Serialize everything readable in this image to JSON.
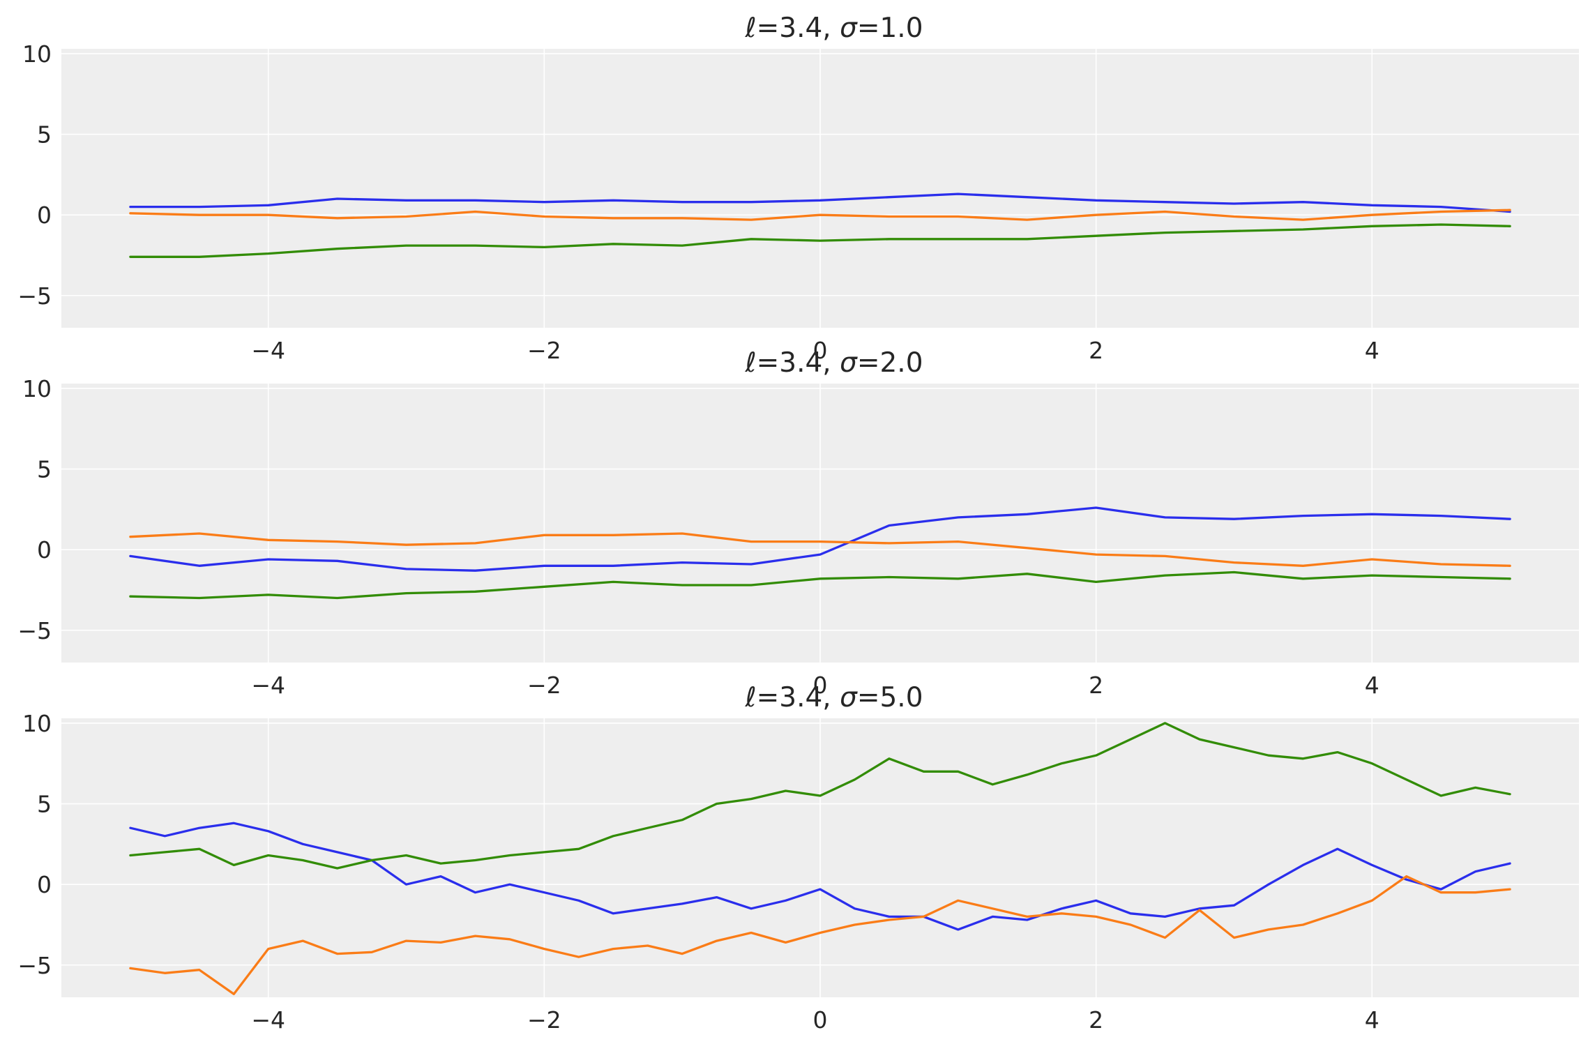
{
  "figure": {
    "background": "#ffffff",
    "panel_background": "#eeeeee",
    "grid_color": "#ffffff",
    "series_colors": [
      "#2a2eec",
      "#fa7c17",
      "#328c06"
    ]
  },
  "chart_data": [
    {
      "type": "line",
      "title": "ℓ=3.4, σ=1.0",
      "title_parts": {
        "l_symbol": "ℓ",
        "l_value": "=3.4, ",
        "sigma_symbol": "σ",
        "sigma_value": "=1.0"
      },
      "xlim": [
        -5.5,
        5.5
      ],
      "ylim": [
        -7,
        10.3
      ],
      "xticks": [
        -4,
        -2,
        0,
        2,
        4
      ],
      "xtick_labels": [
        "−4",
        "−2",
        "0",
        "2",
        "4"
      ],
      "yticks": [
        -5,
        0,
        5,
        10
      ],
      "ytick_labels": [
        "−5",
        "0",
        "5",
        "10"
      ],
      "grid": true,
      "x": [
        -5.0,
        -4.5,
        -4.0,
        -3.5,
        -3.0,
        -2.5,
        -2.0,
        -1.5,
        -1.0,
        -0.5,
        0.0,
        0.5,
        1.0,
        1.5,
        2.0,
        2.5,
        3.0,
        3.5,
        4.0,
        4.5,
        5.0
      ],
      "series": [
        {
          "color": "#2a2eec",
          "values": [
            0.5,
            0.5,
            0.6,
            1.0,
            0.9,
            0.9,
            0.8,
            0.9,
            0.8,
            0.8,
            0.9,
            1.1,
            1.3,
            1.1,
            0.9,
            0.8,
            0.7,
            0.8,
            0.6,
            0.5,
            0.2
          ]
        },
        {
          "color": "#fa7c17",
          "values": [
            0.1,
            0.0,
            0.0,
            -0.2,
            -0.1,
            0.2,
            -0.1,
            -0.2,
            -0.2,
            -0.3,
            0.0,
            -0.1,
            -0.1,
            -0.3,
            0.0,
            0.2,
            -0.1,
            -0.3,
            0.0,
            0.2,
            0.3
          ]
        },
        {
          "color": "#328c06",
          "values": [
            -2.6,
            -2.6,
            -2.4,
            -2.1,
            -1.9,
            -1.9,
            -2.0,
            -1.8,
            -1.9,
            -1.5,
            -1.6,
            -1.5,
            -1.5,
            -1.5,
            -1.3,
            -1.1,
            -1.0,
            -0.9,
            -0.7,
            -0.6,
            -0.7
          ]
        }
      ]
    },
    {
      "type": "line",
      "title": "ℓ=3.4, σ=2.0",
      "title_parts": {
        "l_symbol": "ℓ",
        "l_value": "=3.4, ",
        "sigma_symbol": "σ",
        "sigma_value": "=2.0"
      },
      "xlim": [
        -5.5,
        5.5
      ],
      "ylim": [
        -7,
        10.3
      ],
      "xticks": [
        -4,
        -2,
        0,
        2,
        4
      ],
      "xtick_labels": [
        "−4",
        "−2",
        "0",
        "2",
        "4"
      ],
      "yticks": [
        -5,
        0,
        5,
        10
      ],
      "ytick_labels": [
        "−5",
        "0",
        "5",
        "10"
      ],
      "grid": true,
      "x": [
        -5.0,
        -4.5,
        -4.0,
        -3.5,
        -3.0,
        -2.5,
        -2.0,
        -1.5,
        -1.0,
        -0.5,
        0.0,
        0.5,
        1.0,
        1.5,
        2.0,
        2.5,
        3.0,
        3.5,
        4.0,
        4.5,
        5.0
      ],
      "series": [
        {
          "color": "#2a2eec",
          "values": [
            -0.4,
            -1.0,
            -0.6,
            -0.7,
            -1.2,
            -1.3,
            -1.0,
            -1.0,
            -0.8,
            -0.9,
            -0.3,
            1.5,
            2.0,
            2.2,
            2.6,
            2.0,
            1.9,
            2.1,
            2.2,
            2.1,
            1.9
          ]
        },
        {
          "color": "#fa7c17",
          "values": [
            0.8,
            1.0,
            0.6,
            0.5,
            0.3,
            0.4,
            0.9,
            0.9,
            1.0,
            0.5,
            0.5,
            0.4,
            0.5,
            0.1,
            -0.3,
            -0.4,
            -0.8,
            -1.0,
            -0.6,
            -0.9,
            -1.0
          ]
        },
        {
          "color": "#328c06",
          "values": [
            -2.9,
            -3.0,
            -2.8,
            -3.0,
            -2.7,
            -2.6,
            -2.3,
            -2.0,
            -2.2,
            -2.2,
            -1.8,
            -1.7,
            -1.8,
            -1.5,
            -2.0,
            -1.6,
            -1.4,
            -1.8,
            -1.6,
            -1.7,
            -1.8
          ]
        }
      ]
    },
    {
      "type": "line",
      "title": "ℓ=3.4, σ=5.0",
      "title_parts": {
        "l_symbol": "ℓ",
        "l_value": "=3.4, ",
        "sigma_symbol": "σ",
        "sigma_value": "=5.0"
      },
      "xlim": [
        -5.5,
        5.5
      ],
      "ylim": [
        -7,
        10.3
      ],
      "xticks": [
        -4,
        -2,
        0,
        2,
        4
      ],
      "xtick_labels": [
        "−4",
        "−2",
        "0",
        "2",
        "4"
      ],
      "yticks": [
        -5,
        0,
        5,
        10
      ],
      "ytick_labels": [
        "−5",
        "0",
        "5",
        "10"
      ],
      "grid": true,
      "x": [
        -5.0,
        -4.75,
        -4.5,
        -4.25,
        -4.0,
        -3.75,
        -3.5,
        -3.25,
        -3.0,
        -2.75,
        -2.5,
        -2.25,
        -2.0,
        -1.75,
        -1.5,
        -1.25,
        -1.0,
        -0.75,
        -0.5,
        -0.25,
        0.0,
        0.25,
        0.5,
        0.75,
        1.0,
        1.25,
        1.5,
        1.75,
        2.0,
        2.25,
        2.5,
        2.75,
        3.0,
        3.25,
        3.5,
        3.75,
        4.0,
        4.25,
        4.5,
        4.75,
        5.0
      ],
      "series": [
        {
          "color": "#2a2eec",
          "values": [
            3.5,
            3.0,
            3.5,
            3.8,
            3.3,
            2.5,
            2.0,
            1.5,
            0.0,
            0.5,
            -0.5,
            0.0,
            -0.5,
            -1.0,
            -1.8,
            -1.5,
            -1.2,
            -0.8,
            -1.5,
            -1.0,
            -0.3,
            -1.5,
            -2.0,
            -2.0,
            -2.8,
            -2.0,
            -2.2,
            -1.5,
            -1.0,
            -1.8,
            -2.0,
            -1.5,
            -1.3,
            0.0,
            1.2,
            2.2,
            1.2,
            0.3,
            -0.3,
            0.8,
            1.3
          ]
        },
        {
          "color": "#fa7c17",
          "values": [
            -5.2,
            -5.5,
            -5.3,
            -6.8,
            -4.0,
            -3.5,
            -4.3,
            -4.2,
            -3.5,
            -3.6,
            -3.2,
            -3.4,
            -4.0,
            -4.5,
            -4.0,
            -3.8,
            -4.3,
            -3.5,
            -3.0,
            -3.6,
            -3.0,
            -2.5,
            -2.2,
            -2.0,
            -1.0,
            -1.5,
            -2.0,
            -1.8,
            -2.0,
            -2.5,
            -3.3,
            -1.6,
            -3.3,
            -2.8,
            -2.5,
            -1.8,
            -1.0,
            0.5,
            -0.5,
            -0.5,
            -0.3
          ]
        },
        {
          "color": "#328c06",
          "values": [
            1.8,
            2.0,
            2.2,
            1.2,
            1.8,
            1.5,
            1.0,
            1.5,
            1.8,
            1.3,
            1.5,
            1.8,
            2.0,
            2.2,
            3.0,
            3.5,
            4.0,
            5.0,
            5.3,
            5.8,
            5.5,
            6.5,
            7.8,
            7.0,
            7.0,
            6.2,
            6.8,
            7.5,
            8.0,
            9.0,
            10.0,
            9.0,
            8.5,
            8.0,
            7.8,
            8.2,
            7.5,
            6.5,
            5.5,
            6.0,
            5.6
          ]
        }
      ]
    }
  ]
}
